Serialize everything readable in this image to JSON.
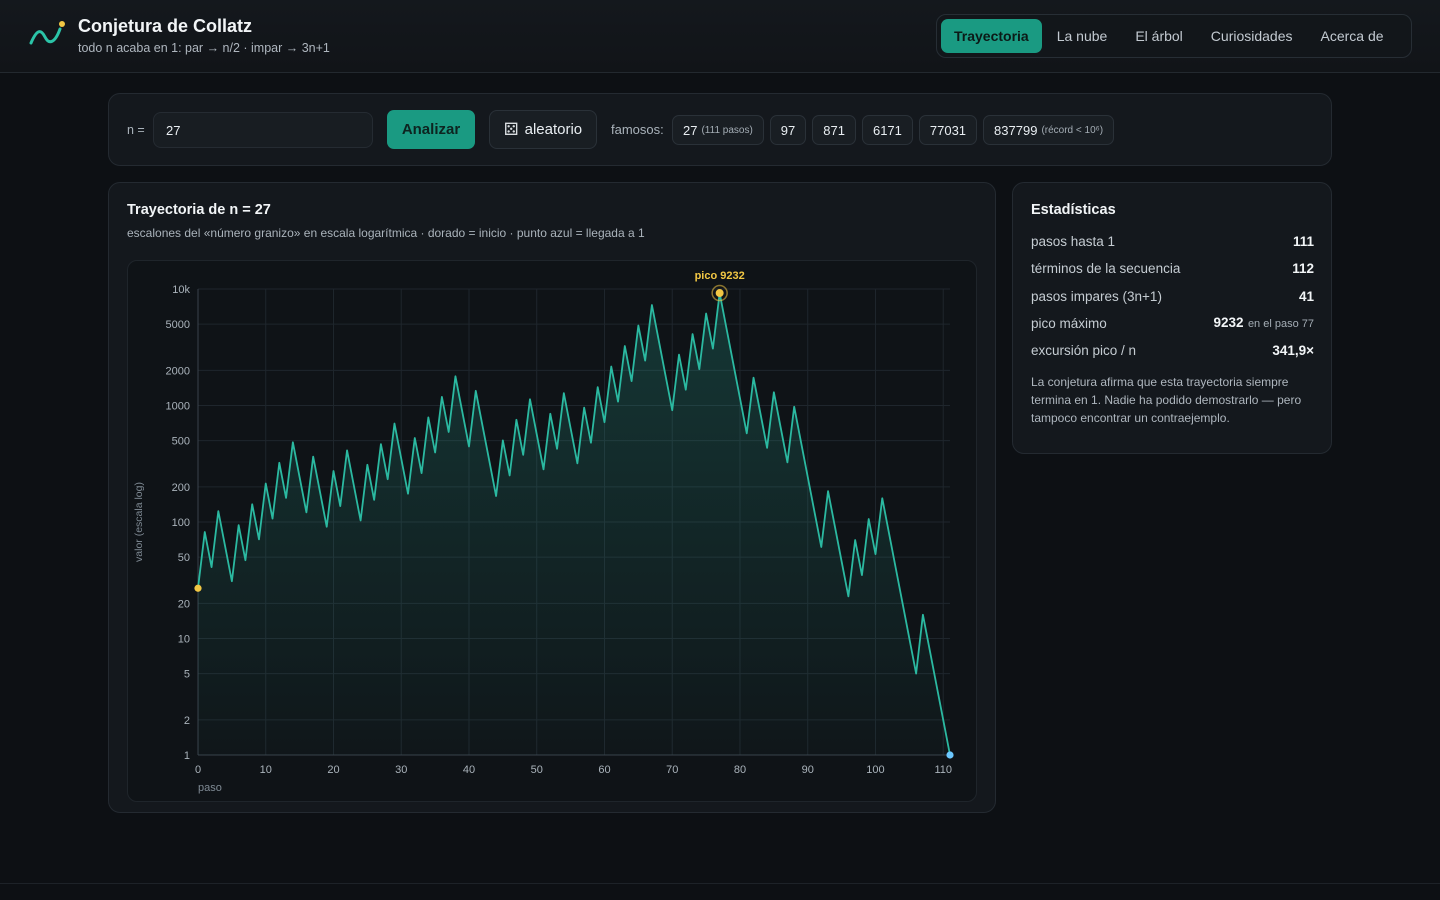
{
  "app": {
    "title": "Conjetura de Collatz",
    "subtitle": "todo n acaba en 1: par → n/2 · impar → 3n+1"
  },
  "nav": {
    "tabs": [
      {
        "label": "Trayectoria",
        "active": true
      },
      {
        "label": "La nube",
        "active": false
      },
      {
        "label": "El árbol",
        "active": false
      },
      {
        "label": "Curiosidades",
        "active": false
      },
      {
        "label": "Acerca de",
        "active": false
      }
    ]
  },
  "input": {
    "label": "n =",
    "value": "27",
    "analyze_label": "Analizar",
    "random_icon": "dice-icon",
    "random_label": "aleatorio",
    "famous_label": "famosos:",
    "famous": [
      {
        "value": "27",
        "note": "(111 pasos)"
      },
      {
        "value": "97",
        "note": ""
      },
      {
        "value": "871",
        "note": ""
      },
      {
        "value": "6171",
        "note": ""
      },
      {
        "value": "77031",
        "note": ""
      },
      {
        "value": "837799",
        "note": "(récord < 10⁶)"
      }
    ]
  },
  "chart_panel": {
    "title": "Trayectoria de n = 27",
    "subtitle": "escalones del «número granizo» en escala logarítmica · dorado = inicio · punto azul = llegada a 1"
  },
  "chart_data": {
    "type": "line",
    "x_label": "paso",
    "y_label": "valor (escala log)",
    "y_scale": "log",
    "ylim": [
      1,
      10000
    ],
    "xlim": [
      0,
      111
    ],
    "y_ticks": [
      1,
      2,
      5,
      10,
      20,
      50,
      100,
      200,
      500,
      1000,
      2000,
      5000,
      10000
    ],
    "y_tick_labels": [
      "1",
      "2",
      "5",
      "10",
      "20",
      "50",
      "100",
      "200",
      "500",
      "1000",
      "2000",
      "5000",
      "10k"
    ],
    "x_ticks": [
      0,
      10,
      20,
      30,
      40,
      50,
      60,
      70,
      80,
      90,
      100,
      110
    ],
    "peak_label": "pico 9232",
    "peak_step": 77,
    "series": [
      {
        "values": [
          27,
          82,
          41,
          124,
          62,
          31,
          94,
          47,
          142,
          71,
          214,
          107,
          322,
          161,
          484,
          242,
          121,
          364,
          182,
          91,
          274,
          137,
          412,
          206,
          103,
          310,
          155,
          466,
          233,
          700,
          350,
          175,
          526,
          263,
          790,
          395,
          1186,
          593,
          1780,
          890,
          445,
          1336,
          668,
          334,
          167,
          502,
          251,
          754,
          377,
          1132,
          566,
          283,
          850,
          425,
          1276,
          638,
          319,
          958,
          479,
          1438,
          719,
          2158,
          1079,
          3238,
          1619,
          4858,
          2429,
          7288,
          3644,
          1822,
          911,
          2734,
          1367,
          4102,
          2051,
          6154,
          3077,
          9232,
          4616,
          2308,
          1154,
          577,
          1732,
          866,
          433,
          1300,
          650,
          325,
          976,
          488,
          244,
          122,
          61,
          184,
          92,
          46,
          23,
          70,
          35,
          106,
          53,
          160,
          80,
          40,
          20,
          10,
          5,
          16,
          8,
          4,
          2,
          1
        ]
      }
    ],
    "colors": {
      "line": "#2bb9a1",
      "start": "#f2c744",
      "end": "#6cc8ff",
      "peak": "#f2c744"
    }
  },
  "stats": {
    "title": "Estadísticas",
    "rows": [
      {
        "label": "pasos hasta 1",
        "value": "111",
        "note": ""
      },
      {
        "label": "términos de la secuencia",
        "value": "112",
        "note": ""
      },
      {
        "label": "pasos impares (3n+1)",
        "value": "41",
        "note": ""
      },
      {
        "label": "pico máximo",
        "value": "9232",
        "note": "en el paso 77"
      },
      {
        "label": "excursión pico / n",
        "value": "341,9×",
        "note": ""
      }
    ],
    "note": "La conjetura afirma que esta trayectoria siempre termina en 1. Nadie ha podido demostrarlo — pero tampoco encontrar un contraejemplo."
  }
}
